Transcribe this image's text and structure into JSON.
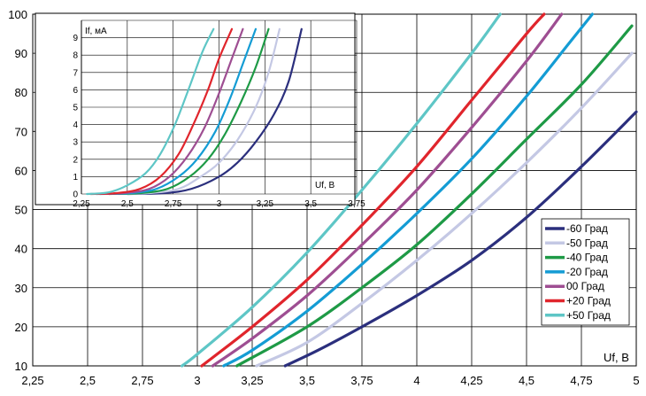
{
  "chart_data": [
    {
      "type": "line",
      "ylabel": "If, мА",
      "xlabel": "Uf, В",
      "xlim": [
        2.25,
        5
      ],
      "ylim": [
        10,
        100
      ],
      "x_ticks": [
        "2,25",
        "2,5",
        "2,75",
        "3",
        "3,25",
        "3,5",
        "3,75",
        "4",
        "4,25",
        "4,5",
        "4,75",
        "5"
      ],
      "y_ticks": [
        "10",
        "20",
        "30",
        "40",
        "50",
        "60",
        "70",
        "80",
        "90",
        "100"
      ],
      "grid": true,
      "legend_position": "right",
      "series": [
        {
          "name": "-60 Град",
          "color": "#2b2f7d",
          "points": [
            [
              3.4,
              10
            ],
            [
              3.55,
              14
            ],
            [
              3.75,
              20
            ],
            [
              4.0,
              28
            ],
            [
              4.25,
              37
            ],
            [
              4.5,
              48
            ],
            [
              4.75,
              61
            ],
            [
              5.0,
              75
            ]
          ]
        },
        {
          "name": "-50 Град",
          "color": "#c4c8e4",
          "points": [
            [
              3.27,
              10
            ],
            [
              3.5,
              16
            ],
            [
              3.75,
              26
            ],
            [
              4.0,
              37
            ],
            [
              4.25,
              49
            ],
            [
              4.5,
              62
            ],
            [
              4.75,
              76
            ],
            [
              4.98,
              90
            ]
          ]
        },
        {
          "name": "-40 Град",
          "color": "#1e9a46",
          "points": [
            [
              3.18,
              10
            ],
            [
              3.5,
              20
            ],
            [
              3.75,
              30
            ],
            [
              4.0,
              41
            ],
            [
              4.25,
              54
            ],
            [
              4.5,
              68
            ],
            [
              4.75,
              82
            ],
            [
              4.98,
              97
            ]
          ]
        },
        {
          "name": "-20 Град",
          "color": "#149cd4",
          "points": [
            [
              3.12,
              10
            ],
            [
              3.25,
              14
            ],
            [
              3.5,
              24
            ],
            [
              3.75,
              36
            ],
            [
              4.0,
              49
            ],
            [
              4.25,
              63
            ],
            [
              4.5,
              79
            ],
            [
              4.7,
              93
            ],
            [
              4.8,
              100
            ]
          ]
        },
        {
          "name": "00 Град",
          "color": "#9e4e92",
          "points": [
            [
              3.07,
              10
            ],
            [
              3.25,
              17
            ],
            [
              3.5,
              28
            ],
            [
              3.75,
              41
            ],
            [
              4.0,
              55
            ],
            [
              4.25,
              71
            ],
            [
              4.5,
              88
            ],
            [
              4.66,
              100
            ]
          ]
        },
        {
          "name": "+20 Град",
          "color": "#e0252c",
          "points": [
            [
              3.02,
              10
            ],
            [
              3.25,
              20
            ],
            [
              3.5,
              32
            ],
            [
              3.75,
              46
            ],
            [
              4.0,
              61
            ],
            [
              4.25,
              78
            ],
            [
              4.5,
              95
            ],
            [
              4.58,
              100
            ]
          ]
        },
        {
          "name": "+50 Град",
          "color": "#5ec6c6",
          "points": [
            [
              2.93,
              10
            ],
            [
              3.0,
              13
            ],
            [
              3.25,
              25
            ],
            [
              3.5,
              39
            ],
            [
              3.75,
              55
            ],
            [
              4.0,
              72
            ],
            [
              4.25,
              90
            ],
            [
              4.38,
              100
            ]
          ]
        }
      ]
    },
    {
      "type": "line",
      "ylabel": "If, мА",
      "xlabel": "Uf, В",
      "xlim": [
        2.25,
        3.75
      ],
      "ylim": [
        0,
        10
      ],
      "x_ticks": [
        "2,25",
        "2,5",
        "2,75",
        "3",
        "3,25",
        "3,5",
        "3,75"
      ],
      "y_ticks": [
        "0",
        "1",
        "2",
        "3",
        "4",
        "5",
        "6",
        "7",
        "8",
        "9"
      ],
      "grid": true,
      "series": [
        {
          "name": "-60 Град",
          "color": "#2b2f7d",
          "points": [
            [
              2.5,
              0
            ],
            [
              2.7,
              0.05
            ],
            [
              2.85,
              0.3
            ],
            [
              3.0,
              1.0
            ],
            [
              3.1,
              1.8
            ],
            [
              3.2,
              3.0
            ],
            [
              3.3,
              4.6
            ],
            [
              3.38,
              6.5
            ],
            [
              3.45,
              9.5
            ]
          ]
        },
        {
          "name": "-50 Град",
          "color": "#c4c8e4",
          "points": [
            [
              2.45,
              0
            ],
            [
              2.62,
              0.05
            ],
            [
              2.78,
              0.3
            ],
            [
              2.9,
              1.0
            ],
            [
              3.0,
              1.8
            ],
            [
              3.1,
              3.1
            ],
            [
              3.2,
              5.0
            ],
            [
              3.27,
              7.0
            ],
            [
              3.33,
              9.5
            ]
          ]
        },
        {
          "name": "-40 Град",
          "color": "#1e9a46",
          "points": [
            [
              2.4,
              0
            ],
            [
              2.57,
              0.05
            ],
            [
              2.72,
              0.3
            ],
            [
              2.84,
              1.0
            ],
            [
              2.94,
              2.0
            ],
            [
              3.03,
              3.4
            ],
            [
              3.12,
              5.3
            ],
            [
              3.2,
              7.3
            ],
            [
              3.27,
              9.5
            ]
          ]
        },
        {
          "name": "-20 Град",
          "color": "#149cd4",
          "points": [
            [
              2.35,
              0
            ],
            [
              2.52,
              0.05
            ],
            [
              2.66,
              0.3
            ],
            [
              2.78,
              1.0
            ],
            [
              2.88,
              2.0
            ],
            [
              2.98,
              3.6
            ],
            [
              3.06,
              5.5
            ],
            [
              3.13,
              7.5
            ],
            [
              3.2,
              9.5
            ]
          ]
        },
        {
          "name": "00 Град",
          "color": "#9e4e92",
          "points": [
            [
              2.33,
              0
            ],
            [
              2.48,
              0.05
            ],
            [
              2.62,
              0.3
            ],
            [
              2.73,
              1.0
            ],
            [
              2.83,
              2.2
            ],
            [
              2.92,
              3.8
            ],
            [
              3.0,
              5.8
            ],
            [
              3.07,
              7.8
            ],
            [
              3.13,
              9.5
            ]
          ]
        },
        {
          "name": "+20 Град",
          "color": "#e0252c",
          "points": [
            [
              2.3,
              0
            ],
            [
              2.44,
              0.05
            ],
            [
              2.57,
              0.3
            ],
            [
              2.68,
              1.0
            ],
            [
              2.78,
              2.3
            ],
            [
              2.86,
              4.0
            ],
            [
              2.94,
              6.0
            ],
            [
              3.0,
              7.8
            ],
            [
              3.07,
              9.5
            ]
          ]
        },
        {
          "name": "+50 Град",
          "color": "#5ec6c6",
          "points": [
            [
              2.28,
              0
            ],
            [
              2.4,
              0.1
            ],
            [
              2.5,
              0.5
            ],
            [
              2.6,
              1.2
            ],
            [
              2.68,
              2.3
            ],
            [
              2.76,
              4.0
            ],
            [
              2.84,
              6.2
            ],
            [
              2.91,
              8.2
            ],
            [
              2.97,
              9.5
            ]
          ]
        }
      ]
    }
  ]
}
